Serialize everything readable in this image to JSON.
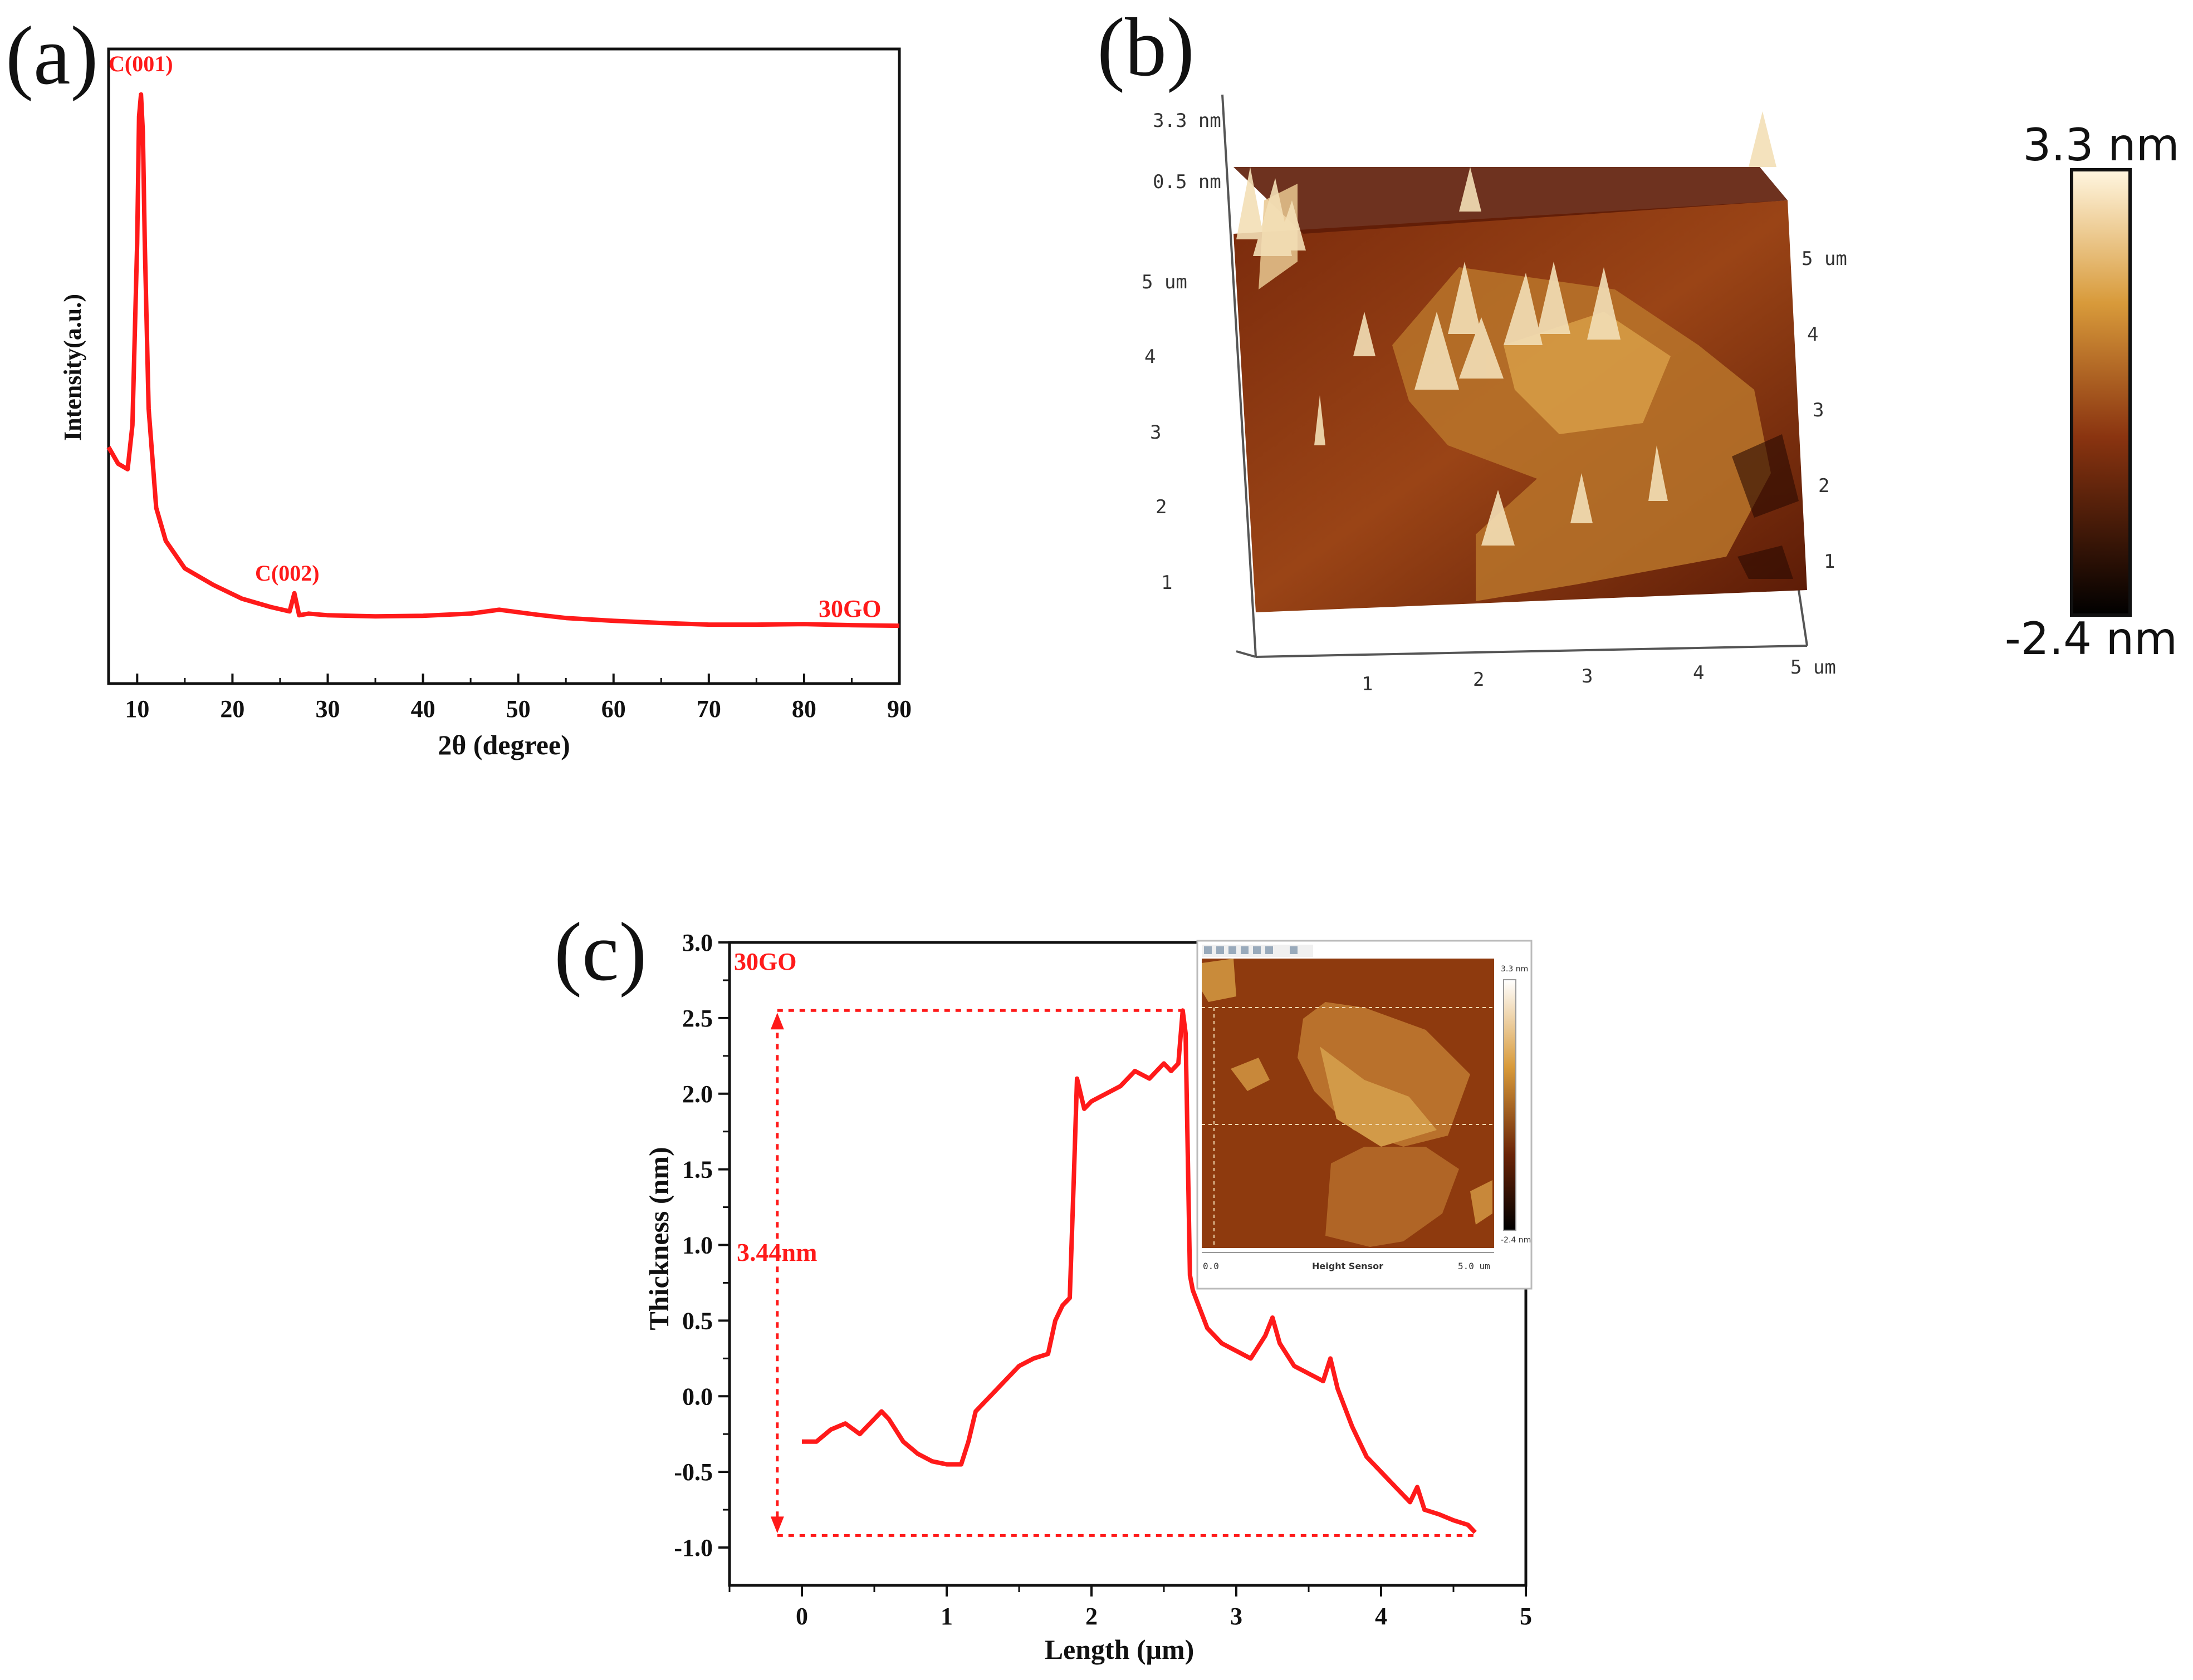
{
  "colors": {
    "curve": "#ff1a1a",
    "axis": "#111111",
    "afm_dark": "#3a0c02",
    "afm_mid": "#8a3410",
    "afm_light": "#d89a3a",
    "afm_white": "#fff6e0"
  },
  "chart_data": [
    {
      "panel": "(a)",
      "type": "line",
      "xlabel": "2θ (degree)",
      "ylabel": "Intensity(a.u.)",
      "xlim": [
        7,
        90
      ],
      "ylim": [
        0,
        100
      ],
      "y_ticks_visible": false,
      "x_ticks": [
        10,
        20,
        30,
        40,
        50,
        60,
        70,
        80,
        90
      ],
      "grid": false,
      "legend": "none",
      "series": [
        {
          "name": "30GO",
          "x": [
            7,
            8,
            9,
            9.5,
            10,
            10.2,
            10.4,
            10.6,
            10.8,
            11.2,
            12,
            13,
            15,
            18,
            21,
            24,
            26,
            26.5,
            27,
            28,
            30,
            35,
            40,
            45,
            48,
            52,
            55,
            60,
            65,
            70,
            75,
            80,
            85,
            90
          ],
          "y": [
            33,
            30,
            29,
            37,
            70,
            93,
            97,
            90,
            70,
            40,
            22,
            16,
            11,
            8,
            5.5,
            4,
            3.2,
            6.5,
            2.5,
            2.8,
            2.5,
            2.3,
            2.4,
            2.8,
            3.5,
            2.6,
            2.0,
            1.5,
            1.1,
            0.8,
            0.8,
            0.9,
            0.7,
            0.6
          ]
        }
      ],
      "annotations": [
        "C(001)",
        "C(002)",
        "30GO"
      ]
    },
    {
      "panel": "(b)",
      "type": "heatmap",
      "z_label_top": "3.3 nm",
      "z_label_mid": "0.5 nm",
      "axis_unit": "um",
      "x_ticks": [
        "1",
        "2",
        "3",
        "4",
        "5 um"
      ],
      "y_ticks_left": [
        "1",
        "2",
        "3",
        "4",
        "5 um"
      ],
      "y_ticks_right": [
        "1",
        "2",
        "3",
        "4",
        "5 um"
      ],
      "colorbar_max": "3.3 nm",
      "colorbar_min": "-2.4 nm"
    },
    {
      "panel": "(c)",
      "type": "line",
      "xlabel": "Length (μm)",
      "ylabel": "Thickness (nm)",
      "xlim": [
        -0.5,
        5
      ],
      "ylim": [
        -1.25,
        3.0
      ],
      "x_ticks": [
        0,
        1,
        2,
        3,
        4,
        5
      ],
      "y_ticks": [
        -1.0,
        -0.5,
        0.0,
        0.5,
        1.0,
        1.5,
        2.0,
        2.5,
        3.0
      ],
      "grid": false,
      "legend": "none",
      "series": [
        {
          "name": "30GO",
          "x": [
            0,
            0.1,
            0.2,
            0.3,
            0.4,
            0.5,
            0.55,
            0.6,
            0.7,
            0.8,
            0.9,
            1.0,
            1.1,
            1.15,
            1.2,
            1.3,
            1.4,
            1.5,
            1.6,
            1.7,
            1.75,
            1.8,
            1.85,
            1.88,
            1.9,
            1.95,
            2.0,
            2.1,
            2.2,
            2.3,
            2.4,
            2.5,
            2.55,
            2.6,
            2.63,
            2.65,
            2.68,
            2.7,
            2.8,
            2.9,
            3.0,
            3.1,
            3.2,
            3.25,
            3.3,
            3.4,
            3.5,
            3.6,
            3.65,
            3.7,
            3.8,
            3.9,
            4.0,
            4.1,
            4.2,
            4.25,
            4.3,
            4.4,
            4.5,
            4.6,
            4.65
          ],
          "y": [
            -0.3,
            -0.3,
            -0.22,
            -0.18,
            -0.25,
            -0.15,
            -0.1,
            -0.15,
            -0.3,
            -0.38,
            -0.43,
            -0.45,
            -0.45,
            -0.3,
            -0.1,
            0.0,
            0.1,
            0.2,
            0.25,
            0.28,
            0.5,
            0.6,
            0.65,
            1.5,
            2.1,
            1.9,
            1.95,
            2.0,
            2.05,
            2.15,
            2.1,
            2.2,
            2.15,
            2.2,
            2.55,
            2.4,
            0.8,
            0.7,
            0.45,
            0.35,
            0.3,
            0.25,
            0.4,
            0.52,
            0.35,
            0.2,
            0.15,
            0.1,
            0.25,
            0.05,
            -0.2,
            -0.4,
            -0.5,
            -0.6,
            -0.7,
            -0.6,
            -0.75,
            -0.78,
            -0.82,
            -0.85,
            -0.9
          ]
        }
      ],
      "annotations": [
        "30GO",
        "3.44nm"
      ],
      "inset": {
        "label_scale_top": "3.3 nm",
        "label_scale_bottom": "-2.4 nm",
        "axis_start": "0.0",
        "axis_end": "5.0 um",
        "caption": "Height Sensor"
      }
    }
  ]
}
